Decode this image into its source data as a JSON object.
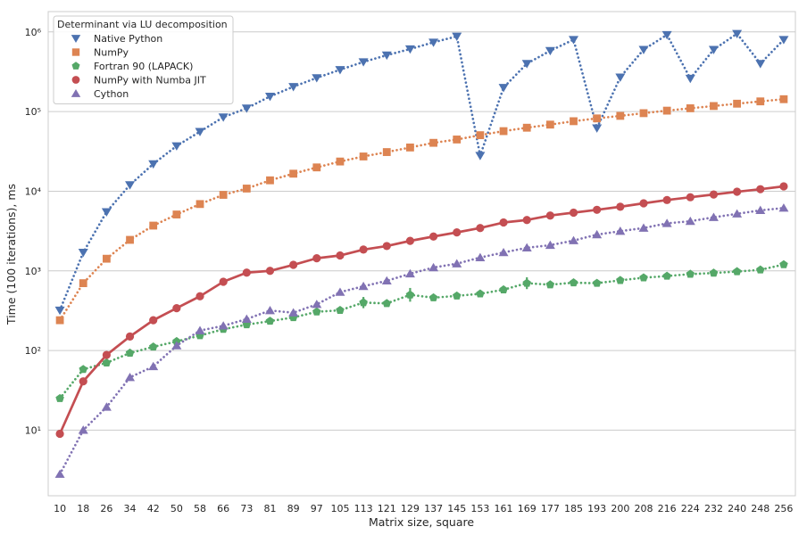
{
  "chart_data": {
    "type": "line",
    "xlabel": "Matrix size, square",
    "ylabel": "Time (100 iterations), ms",
    "yscale": "log",
    "ylim": [
      1.5,
      1800000
    ],
    "grid": "horizontal",
    "legend": {
      "title": "Determinant via LU decomposition",
      "position": "top-left"
    },
    "categories": [
      "10",
      "18",
      "26",
      "34",
      "42",
      "50",
      "58",
      "66",
      "73",
      "81",
      "89",
      "97",
      "105",
      "113",
      "121",
      "129",
      "137",
      "145",
      "153",
      "161",
      "169",
      "177",
      "185",
      "193",
      "200",
      "208",
      "216",
      "224",
      "232",
      "240",
      "248",
      "256"
    ],
    "yticks": [
      {
        "value": 10,
        "label": "10¹"
      },
      {
        "value": 100,
        "label": "10²"
      },
      {
        "value": 1000,
        "label": "10³"
      },
      {
        "value": 10000,
        "label": "10⁴"
      },
      {
        "value": 100000,
        "label": "10⁵"
      },
      {
        "value": 1000000,
        "label": "10⁶"
      }
    ],
    "series": [
      {
        "name": "Native Python",
        "color": "#4c72b0",
        "marker": "triangle-down",
        "linestyle": "dotted",
        "values": [
          320,
          1700,
          5500,
          12000,
          22000,
          37000,
          56000,
          85000,
          110000,
          155000,
          205000,
          265000,
          335000,
          420000,
          510000,
          610000,
          740000,
          880000,
          28000,
          200000,
          400000,
          580000,
          800000,
          62000,
          270000,
          600000,
          920000,
          260000,
          600000,
          950000,
          400000,
          800000
        ]
      },
      {
        "name": "NumPy",
        "color": "#dd8452",
        "marker": "square",
        "linestyle": "dotted",
        "values": [
          240,
          700,
          1420,
          2450,
          3700,
          5100,
          6900,
          9000,
          10800,
          13700,
          16600,
          19900,
          23600,
          27300,
          31000,
          35400,
          40500,
          44600,
          50500,
          56800,
          62700,
          68600,
          75700,
          82100,
          88300,
          95500,
          102700,
          110000,
          117400,
          125600,
          134200,
          143000
        ]
      },
      {
        "name": "Fortran 90 (LAPACK)",
        "color": "#55a868",
        "marker": "pentagon",
        "linestyle": "dotted",
        "values": [
          25,
          58,
          70,
          93,
          111,
          130,
          154,
          185,
          211,
          234,
          260,
          306,
          320,
          400,
          390,
          500,
          460,
          485,
          515,
          580,
          700,
          670,
          710,
          700,
          760,
          820,
          860,
          910,
          940,
          980,
          1030,
          1200
        ]
      },
      {
        "name": "NumPy with Numba JIT",
        "color": "#c44e52",
        "marker": "circle",
        "linestyle": "solid",
        "values": [
          9,
          41,
          88,
          150,
          240,
          340,
          480,
          730,
          950,
          1000,
          1190,
          1440,
          1560,
          1850,
          2050,
          2380,
          2700,
          3040,
          3450,
          4050,
          4350,
          4950,
          5380,
          5840,
          6380,
          7050,
          7750,
          8400,
          9100,
          9850,
          10600,
          11500
        ]
      },
      {
        "name": "Cython",
        "color": "#8172b3",
        "marker": "triangle-up",
        "linestyle": "dotted",
        "values": [
          2.8,
          10,
          19.5,
          46,
          63,
          115,
          178,
          204,
          248,
          318,
          298,
          380,
          540,
          640,
          750,
          920,
          1100,
          1230,
          1470,
          1700,
          1950,
          2100,
          2400,
          2850,
          3150,
          3450,
          3950,
          4200,
          4700,
          5200,
          5750,
          6150
        ]
      }
    ],
    "error_bars": [
      {
        "series": "Fortran 90 (LAPACK)",
        "category": "113",
        "low": 340,
        "high": 470
      },
      {
        "series": "Fortran 90 (LAPACK)",
        "category": "129",
        "low": 410,
        "high": 610
      },
      {
        "series": "Fortran 90 (LAPACK)",
        "category": "169",
        "low": 590,
        "high": 830
      }
    ]
  }
}
